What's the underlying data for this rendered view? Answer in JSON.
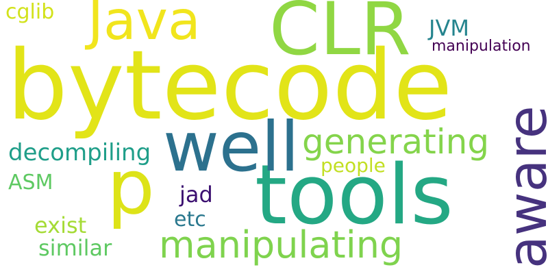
{
  "words": [
    {
      "text": "bytecode",
      "color": "#e2e418"
    },
    {
      "text": "CLR",
      "color": "#90d743"
    },
    {
      "text": "Java",
      "color": "#f1e51d"
    },
    {
      "text": "tools",
      "color": "#24a884"
    },
    {
      "text": "p",
      "color": "#dde318"
    },
    {
      "text": "well",
      "color": "#2c718e"
    },
    {
      "text": "aware",
      "color": "#46327e"
    },
    {
      "text": "manipulating",
      "color": "#7fd34e"
    },
    {
      "text": "generating",
      "color": "#84d44b"
    },
    {
      "text": "decompiling",
      "color": "#1f9e89"
    },
    {
      "text": "cglib",
      "color": "#d2e21b"
    },
    {
      "text": "JVM",
      "color": "#25848e"
    },
    {
      "text": "manipulation",
      "color": "#440154"
    },
    {
      "text": "people",
      "color": "#c2df23"
    },
    {
      "text": "ASM",
      "color": "#5ec962"
    },
    {
      "text": "jad",
      "color": "#3b0f70"
    },
    {
      "text": "etc",
      "color": "#2a788e"
    },
    {
      "text": "exist",
      "color": "#a5db36"
    },
    {
      "text": "similar",
      "color": "#5ec962"
    }
  ]
}
